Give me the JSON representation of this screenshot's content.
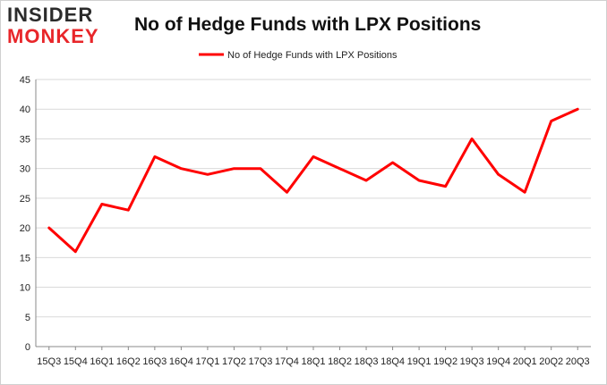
{
  "logo": {
    "top": "INSIDER",
    "bottom": "MONKEY"
  },
  "colors": {
    "line": "#ff0000",
    "grid": "#d9d9d9",
    "axis": "#888888"
  },
  "chart_data": {
    "type": "line",
    "title": "No of Hedge Funds with LPX Positions",
    "xlabel": "",
    "ylabel": "",
    "ylim": [
      0,
      45
    ],
    "yticks": [
      0,
      5,
      10,
      15,
      20,
      25,
      30,
      35,
      40,
      45
    ],
    "grid": true,
    "legend_position": "top-center",
    "categories": [
      "15Q3",
      "15Q4",
      "16Q1",
      "16Q2",
      "16Q3",
      "16Q4",
      "17Q1",
      "17Q2",
      "17Q3",
      "17Q4",
      "18Q1",
      "18Q2",
      "18Q3",
      "18Q4",
      "19Q1",
      "19Q2",
      "19Q3",
      "19Q4",
      "20Q1",
      "20Q2",
      "20Q3"
    ],
    "series": [
      {
        "name": "No of Hedge Funds with LPX Positions",
        "values": [
          20,
          16,
          24,
          23,
          32,
          30,
          29,
          30,
          30,
          26,
          32,
          30,
          28,
          31,
          28,
          27,
          35,
          29,
          26,
          38,
          40
        ]
      }
    ]
  }
}
